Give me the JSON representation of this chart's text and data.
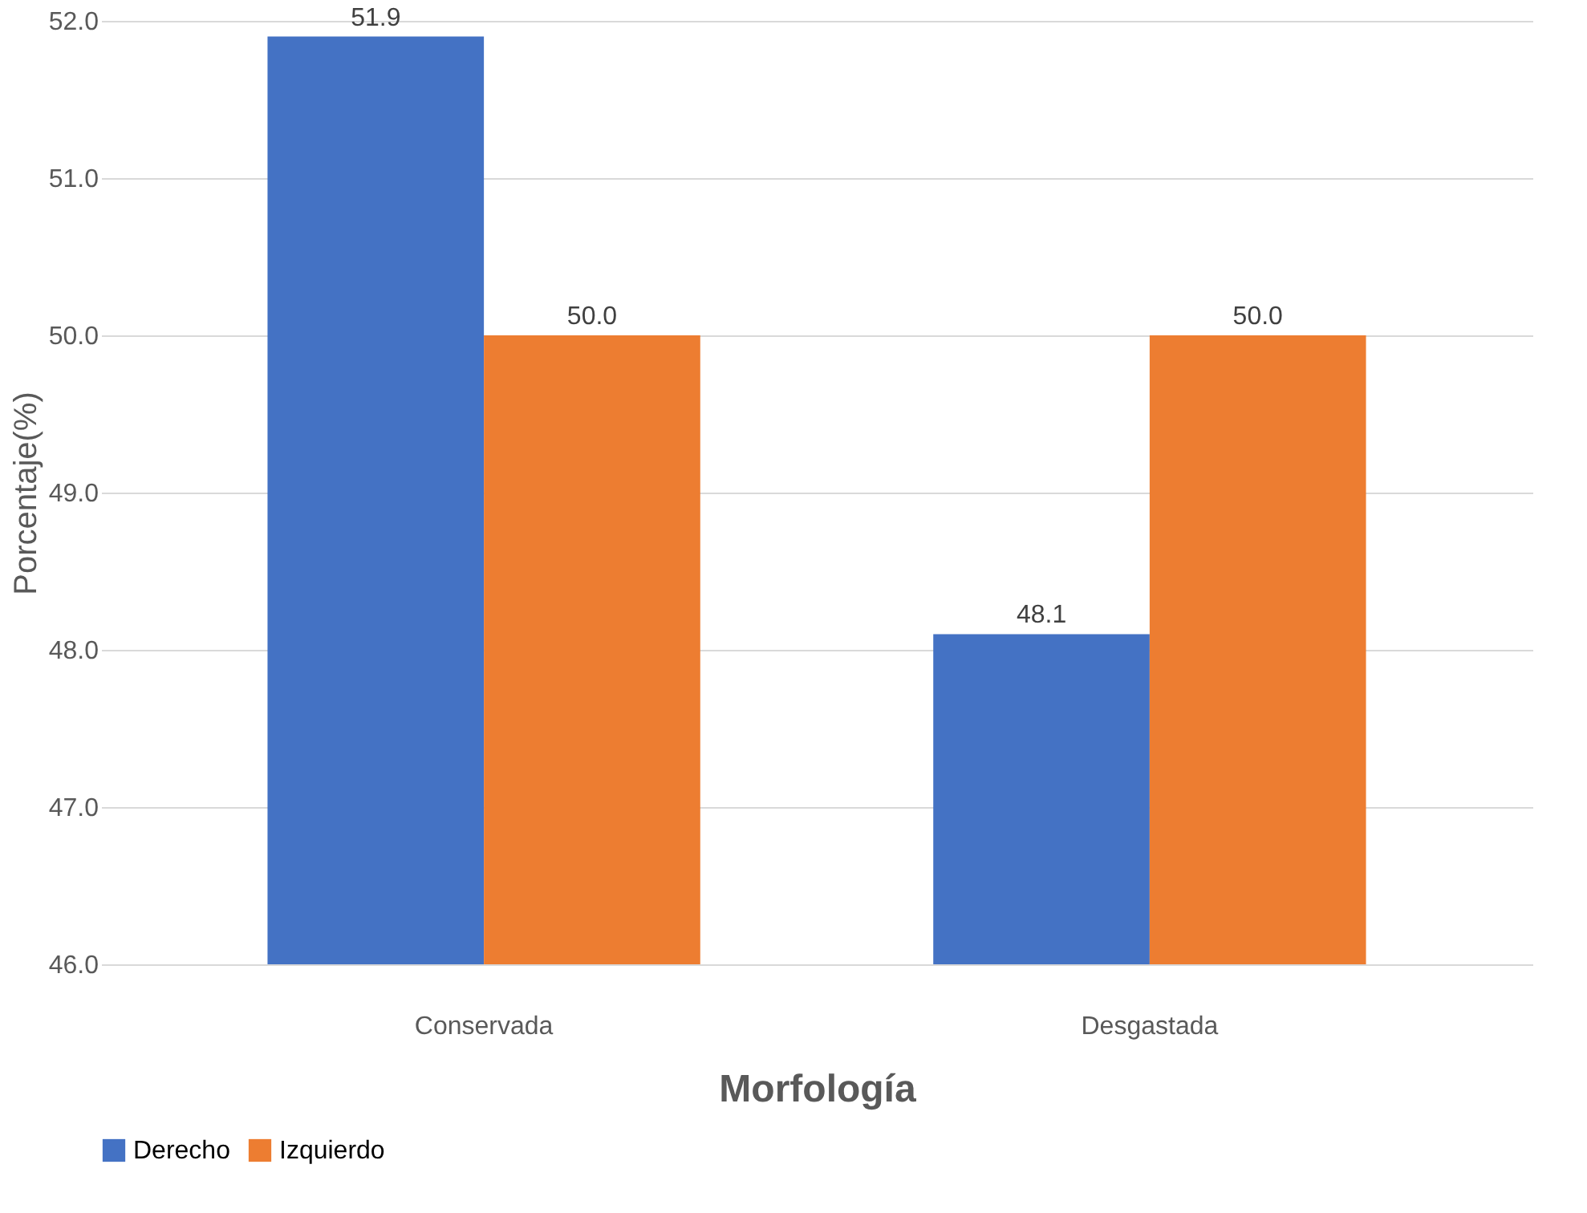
{
  "chart_data": {
    "type": "bar",
    "categories": [
      "Conservada",
      "Desgastada"
    ],
    "series": [
      {
        "name": "Derecho",
        "color": "#4472c4",
        "values": [
          51.9,
          48.1
        ]
      },
      {
        "name": "Izquierdo",
        "color": "#ed7d31",
        "values": [
          50.0,
          50.0
        ]
      }
    ],
    "xlabel": "Morfología",
    "ylabel": "Porcentaje(%)",
    "ylim": [
      46,
      52
    ],
    "yticks": [
      {
        "value": 46,
        "label": "46.0"
      },
      {
        "value": 47,
        "label": "47.0"
      },
      {
        "value": 48,
        "label": "48.0"
      },
      {
        "value": 49,
        "label": "49.0"
      },
      {
        "value": 50,
        "label": "50.0"
      },
      {
        "value": 51,
        "label": "51.0"
      },
      {
        "value": 52,
        "label": "52.0"
      }
    ],
    "value_labels": [
      [
        "51.9",
        "48.1"
      ],
      [
        "50.0",
        "50.0"
      ]
    ],
    "grid": "y",
    "legend": "bottom"
  }
}
